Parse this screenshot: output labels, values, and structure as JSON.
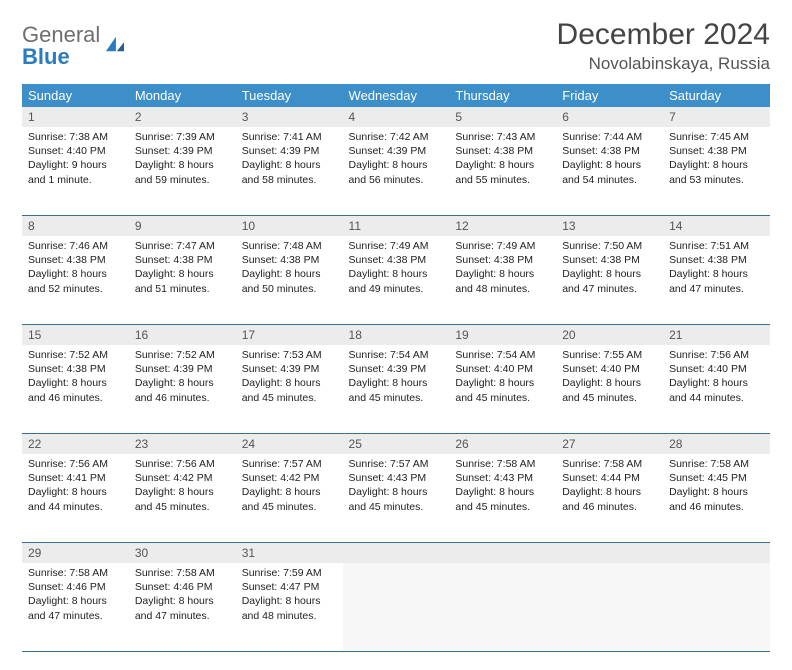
{
  "logo": {
    "word1": "General",
    "word2": "Blue"
  },
  "title": "December 2024",
  "location": "Novolabinskaya, Russia",
  "colors": {
    "header_bg": "#3d8fc9",
    "header_text": "#ffffff",
    "daynum_bg": "#ececec",
    "week_divider": "#3d6f95",
    "logo_gray": "#6f6f6f",
    "logo_blue": "#2a7bbf"
  },
  "weekdays": [
    "Sunday",
    "Monday",
    "Tuesday",
    "Wednesday",
    "Thursday",
    "Friday",
    "Saturday"
  ],
  "weeks": [
    {
      "nums": [
        "1",
        "2",
        "3",
        "4",
        "5",
        "6",
        "7"
      ],
      "days": [
        {
          "sunrise": "Sunrise: 7:38 AM",
          "sunset": "Sunset: 4:40 PM",
          "dl1": "Daylight: 9 hours",
          "dl2": "and 1 minute."
        },
        {
          "sunrise": "Sunrise: 7:39 AM",
          "sunset": "Sunset: 4:39 PM",
          "dl1": "Daylight: 8 hours",
          "dl2": "and 59 minutes."
        },
        {
          "sunrise": "Sunrise: 7:41 AM",
          "sunset": "Sunset: 4:39 PM",
          "dl1": "Daylight: 8 hours",
          "dl2": "and 58 minutes."
        },
        {
          "sunrise": "Sunrise: 7:42 AM",
          "sunset": "Sunset: 4:39 PM",
          "dl1": "Daylight: 8 hours",
          "dl2": "and 56 minutes."
        },
        {
          "sunrise": "Sunrise: 7:43 AM",
          "sunset": "Sunset: 4:38 PM",
          "dl1": "Daylight: 8 hours",
          "dl2": "and 55 minutes."
        },
        {
          "sunrise": "Sunrise: 7:44 AM",
          "sunset": "Sunset: 4:38 PM",
          "dl1": "Daylight: 8 hours",
          "dl2": "and 54 minutes."
        },
        {
          "sunrise": "Sunrise: 7:45 AM",
          "sunset": "Sunset: 4:38 PM",
          "dl1": "Daylight: 8 hours",
          "dl2": "and 53 minutes."
        }
      ]
    },
    {
      "nums": [
        "8",
        "9",
        "10",
        "11",
        "12",
        "13",
        "14"
      ],
      "days": [
        {
          "sunrise": "Sunrise: 7:46 AM",
          "sunset": "Sunset: 4:38 PM",
          "dl1": "Daylight: 8 hours",
          "dl2": "and 52 minutes."
        },
        {
          "sunrise": "Sunrise: 7:47 AM",
          "sunset": "Sunset: 4:38 PM",
          "dl1": "Daylight: 8 hours",
          "dl2": "and 51 minutes."
        },
        {
          "sunrise": "Sunrise: 7:48 AM",
          "sunset": "Sunset: 4:38 PM",
          "dl1": "Daylight: 8 hours",
          "dl2": "and 50 minutes."
        },
        {
          "sunrise": "Sunrise: 7:49 AM",
          "sunset": "Sunset: 4:38 PM",
          "dl1": "Daylight: 8 hours",
          "dl2": "and 49 minutes."
        },
        {
          "sunrise": "Sunrise: 7:49 AM",
          "sunset": "Sunset: 4:38 PM",
          "dl1": "Daylight: 8 hours",
          "dl2": "and 48 minutes."
        },
        {
          "sunrise": "Sunrise: 7:50 AM",
          "sunset": "Sunset: 4:38 PM",
          "dl1": "Daylight: 8 hours",
          "dl2": "and 47 minutes."
        },
        {
          "sunrise": "Sunrise: 7:51 AM",
          "sunset": "Sunset: 4:38 PM",
          "dl1": "Daylight: 8 hours",
          "dl2": "and 47 minutes."
        }
      ]
    },
    {
      "nums": [
        "15",
        "16",
        "17",
        "18",
        "19",
        "20",
        "21"
      ],
      "days": [
        {
          "sunrise": "Sunrise: 7:52 AM",
          "sunset": "Sunset: 4:38 PM",
          "dl1": "Daylight: 8 hours",
          "dl2": "and 46 minutes."
        },
        {
          "sunrise": "Sunrise: 7:52 AM",
          "sunset": "Sunset: 4:39 PM",
          "dl1": "Daylight: 8 hours",
          "dl2": "and 46 minutes."
        },
        {
          "sunrise": "Sunrise: 7:53 AM",
          "sunset": "Sunset: 4:39 PM",
          "dl1": "Daylight: 8 hours",
          "dl2": "and 45 minutes."
        },
        {
          "sunrise": "Sunrise: 7:54 AM",
          "sunset": "Sunset: 4:39 PM",
          "dl1": "Daylight: 8 hours",
          "dl2": "and 45 minutes."
        },
        {
          "sunrise": "Sunrise: 7:54 AM",
          "sunset": "Sunset: 4:40 PM",
          "dl1": "Daylight: 8 hours",
          "dl2": "and 45 minutes."
        },
        {
          "sunrise": "Sunrise: 7:55 AM",
          "sunset": "Sunset: 4:40 PM",
          "dl1": "Daylight: 8 hours",
          "dl2": "and 45 minutes."
        },
        {
          "sunrise": "Sunrise: 7:56 AM",
          "sunset": "Sunset: 4:40 PM",
          "dl1": "Daylight: 8 hours",
          "dl2": "and 44 minutes."
        }
      ]
    },
    {
      "nums": [
        "22",
        "23",
        "24",
        "25",
        "26",
        "27",
        "28"
      ],
      "days": [
        {
          "sunrise": "Sunrise: 7:56 AM",
          "sunset": "Sunset: 4:41 PM",
          "dl1": "Daylight: 8 hours",
          "dl2": "and 44 minutes."
        },
        {
          "sunrise": "Sunrise: 7:56 AM",
          "sunset": "Sunset: 4:42 PM",
          "dl1": "Daylight: 8 hours",
          "dl2": "and 45 minutes."
        },
        {
          "sunrise": "Sunrise: 7:57 AM",
          "sunset": "Sunset: 4:42 PM",
          "dl1": "Daylight: 8 hours",
          "dl2": "and 45 minutes."
        },
        {
          "sunrise": "Sunrise: 7:57 AM",
          "sunset": "Sunset: 4:43 PM",
          "dl1": "Daylight: 8 hours",
          "dl2": "and 45 minutes."
        },
        {
          "sunrise": "Sunrise: 7:58 AM",
          "sunset": "Sunset: 4:43 PM",
          "dl1": "Daylight: 8 hours",
          "dl2": "and 45 minutes."
        },
        {
          "sunrise": "Sunrise: 7:58 AM",
          "sunset": "Sunset: 4:44 PM",
          "dl1": "Daylight: 8 hours",
          "dl2": "and 46 minutes."
        },
        {
          "sunrise": "Sunrise: 7:58 AM",
          "sunset": "Sunset: 4:45 PM",
          "dl1": "Daylight: 8 hours",
          "dl2": "and 46 minutes."
        }
      ]
    },
    {
      "nums": [
        "29",
        "30",
        "31",
        "",
        "",
        "",
        ""
      ],
      "days": [
        {
          "sunrise": "Sunrise: 7:58 AM",
          "sunset": "Sunset: 4:46 PM",
          "dl1": "Daylight: 8 hours",
          "dl2": "and 47 minutes."
        },
        {
          "sunrise": "Sunrise: 7:58 AM",
          "sunset": "Sunset: 4:46 PM",
          "dl1": "Daylight: 8 hours",
          "dl2": "and 47 minutes."
        },
        {
          "sunrise": "Sunrise: 7:59 AM",
          "sunset": "Sunset: 4:47 PM",
          "dl1": "Daylight: 8 hours",
          "dl2": "and 48 minutes."
        },
        null,
        null,
        null,
        null
      ]
    }
  ]
}
